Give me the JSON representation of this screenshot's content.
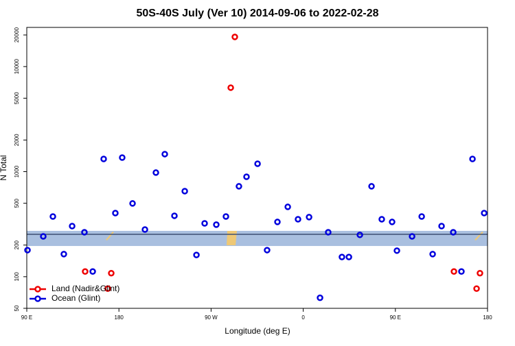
{
  "chart_data": {
    "type": "scatter",
    "title": "50S-40S July (Ver 10)   2014-09-06 to 2022-02-28",
    "x_label": "Longitude (deg E)",
    "y_label": "N Total",
    "log_y": true,
    "xlim": [
      90,
      540
    ],
    "xticks": [
      {
        "value": 90,
        "label": "90 E"
      },
      180,
      {
        "value": 270,
        "label": "90 W"
      },
      {
        "value": 360,
        "label": "0"
      },
      {
        "value": 450,
        "label": "90 E"
      },
      {
        "value": 540,
        "label": "180"
      }
    ],
    "ylim": [
      50,
      23600
    ],
    "yticks": [
      50,
      100,
      200,
      500,
      1000,
      2000,
      5000,
      10000,
      20000
    ],
    "band": {
      "low": 196,
      "high": 273,
      "line": 253,
      "color": "#a9bfdf",
      "line_color": "#3d4f72"
    },
    "legend": "bottom-left",
    "series": [
      {
        "name": "Land (Nadir&Glint)",
        "color": "#ee0000",
        "x": [
          147.0,
          169.1,
          172.5,
          293.2,
          289.2,
          507.2,
          529.3,
          532.6
        ],
        "values": [
          112,
          77,
          108,
          19150,
          6300,
          112,
          77,
          108
        ]
      },
      {
        "name": "Ocean (Glint)",
        "color": "#0000dd",
        "x": [
          90.7,
          106.1,
          115.5,
          126.2,
          134.3,
          146.3,
          154.4,
          165.1,
          176.5,
          183.2,
          193.3,
          205.4,
          216.1,
          224.8,
          234.2,
          244.3,
          255.7,
          263.7,
          275.1,
          284.5,
          297.2,
          304.6,
          315.4,
          324.7,
          334.8,
          344.9,
          354.9,
          365.7,
          376.4,
          384.4,
          397.8,
          404.6,
          415.3,
          426.7,
          436.7,
          446.8,
          451.5,
          466.3,
          475.7,
          486.4,
          495.1,
          506.5,
          514.5,
          525.3,
          536.7
        ],
        "values": [
          179,
          242,
          374,
          164,
          303,
          265,
          112,
          1321,
          403,
          1361,
          498,
          281,
          979,
          1468,
          380,
          652,
          161,
          322,
          313,
          374,
          725,
          894,
          1189,
          179,
          332,
          462,
          352,
          369,
          63,
          265,
          154,
          154,
          250,
          725,
          352,
          332,
          177,
          242,
          374,
          164,
          303,
          265,
          112,
          1321,
          403
        ]
      }
    ]
  }
}
